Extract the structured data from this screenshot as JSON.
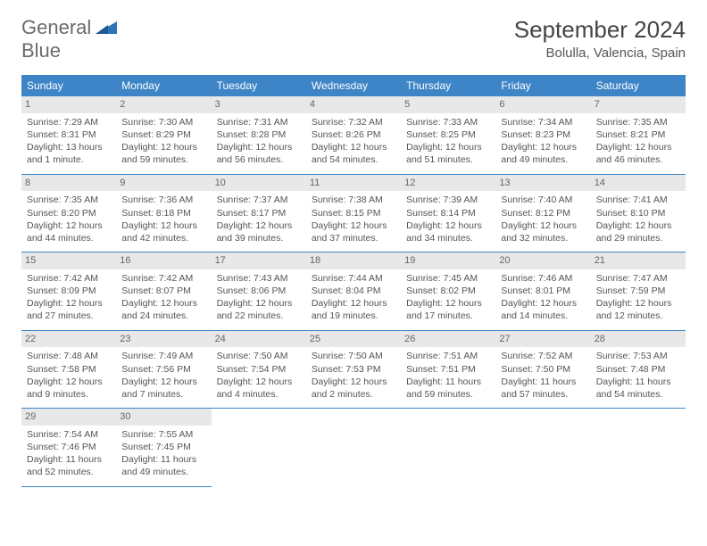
{
  "logo": {
    "line1": "General",
    "line2": "Blue"
  },
  "title": "September 2024",
  "location": "Bolulla, Valencia, Spain",
  "colors": {
    "header_bg": "#3d85c6",
    "header_text": "#ffffff",
    "daynum_bg": "#e8e8e8",
    "border": "#3d85c6",
    "logo_gray": "#6b6b6b",
    "logo_blue": "#2e75b6"
  },
  "weekdays": [
    "Sunday",
    "Monday",
    "Tuesday",
    "Wednesday",
    "Thursday",
    "Friday",
    "Saturday"
  ],
  "cells": [
    {
      "n": "1",
      "sr": "7:29 AM",
      "ss": "8:31 PM",
      "dl": "13 hours and 1 minute."
    },
    {
      "n": "2",
      "sr": "7:30 AM",
      "ss": "8:29 PM",
      "dl": "12 hours and 59 minutes."
    },
    {
      "n": "3",
      "sr": "7:31 AM",
      "ss": "8:28 PM",
      "dl": "12 hours and 56 minutes."
    },
    {
      "n": "4",
      "sr": "7:32 AM",
      "ss": "8:26 PM",
      "dl": "12 hours and 54 minutes."
    },
    {
      "n": "5",
      "sr": "7:33 AM",
      "ss": "8:25 PM",
      "dl": "12 hours and 51 minutes."
    },
    {
      "n": "6",
      "sr": "7:34 AM",
      "ss": "8:23 PM",
      "dl": "12 hours and 49 minutes."
    },
    {
      "n": "7",
      "sr": "7:35 AM",
      "ss": "8:21 PM",
      "dl": "12 hours and 46 minutes."
    },
    {
      "n": "8",
      "sr": "7:35 AM",
      "ss": "8:20 PM",
      "dl": "12 hours and 44 minutes."
    },
    {
      "n": "9",
      "sr": "7:36 AM",
      "ss": "8:18 PM",
      "dl": "12 hours and 42 minutes."
    },
    {
      "n": "10",
      "sr": "7:37 AM",
      "ss": "8:17 PM",
      "dl": "12 hours and 39 minutes."
    },
    {
      "n": "11",
      "sr": "7:38 AM",
      "ss": "8:15 PM",
      "dl": "12 hours and 37 minutes."
    },
    {
      "n": "12",
      "sr": "7:39 AM",
      "ss": "8:14 PM",
      "dl": "12 hours and 34 minutes."
    },
    {
      "n": "13",
      "sr": "7:40 AM",
      "ss": "8:12 PM",
      "dl": "12 hours and 32 minutes."
    },
    {
      "n": "14",
      "sr": "7:41 AM",
      "ss": "8:10 PM",
      "dl": "12 hours and 29 minutes."
    },
    {
      "n": "15",
      "sr": "7:42 AM",
      "ss": "8:09 PM",
      "dl": "12 hours and 27 minutes."
    },
    {
      "n": "16",
      "sr": "7:42 AM",
      "ss": "8:07 PM",
      "dl": "12 hours and 24 minutes."
    },
    {
      "n": "17",
      "sr": "7:43 AM",
      "ss": "8:06 PM",
      "dl": "12 hours and 22 minutes."
    },
    {
      "n": "18",
      "sr": "7:44 AM",
      "ss": "8:04 PM",
      "dl": "12 hours and 19 minutes."
    },
    {
      "n": "19",
      "sr": "7:45 AM",
      "ss": "8:02 PM",
      "dl": "12 hours and 17 minutes."
    },
    {
      "n": "20",
      "sr": "7:46 AM",
      "ss": "8:01 PM",
      "dl": "12 hours and 14 minutes."
    },
    {
      "n": "21",
      "sr": "7:47 AM",
      "ss": "7:59 PM",
      "dl": "12 hours and 12 minutes."
    },
    {
      "n": "22",
      "sr": "7:48 AM",
      "ss": "7:58 PM",
      "dl": "12 hours and 9 minutes."
    },
    {
      "n": "23",
      "sr": "7:49 AM",
      "ss": "7:56 PM",
      "dl": "12 hours and 7 minutes."
    },
    {
      "n": "24",
      "sr": "7:50 AM",
      "ss": "7:54 PM",
      "dl": "12 hours and 4 minutes."
    },
    {
      "n": "25",
      "sr": "7:50 AM",
      "ss": "7:53 PM",
      "dl": "12 hours and 2 minutes."
    },
    {
      "n": "26",
      "sr": "7:51 AM",
      "ss": "7:51 PM",
      "dl": "11 hours and 59 minutes."
    },
    {
      "n": "27",
      "sr": "7:52 AM",
      "ss": "7:50 PM",
      "dl": "11 hours and 57 minutes."
    },
    {
      "n": "28",
      "sr": "7:53 AM",
      "ss": "7:48 PM",
      "dl": "11 hours and 54 minutes."
    },
    {
      "n": "29",
      "sr": "7:54 AM",
      "ss": "7:46 PM",
      "dl": "11 hours and 52 minutes."
    },
    {
      "n": "30",
      "sr": "7:55 AM",
      "ss": "7:45 PM",
      "dl": "11 hours and 49 minutes."
    }
  ],
  "labels": {
    "sunrise": "Sunrise:",
    "sunset": "Sunset:",
    "daylight": "Daylight:"
  }
}
